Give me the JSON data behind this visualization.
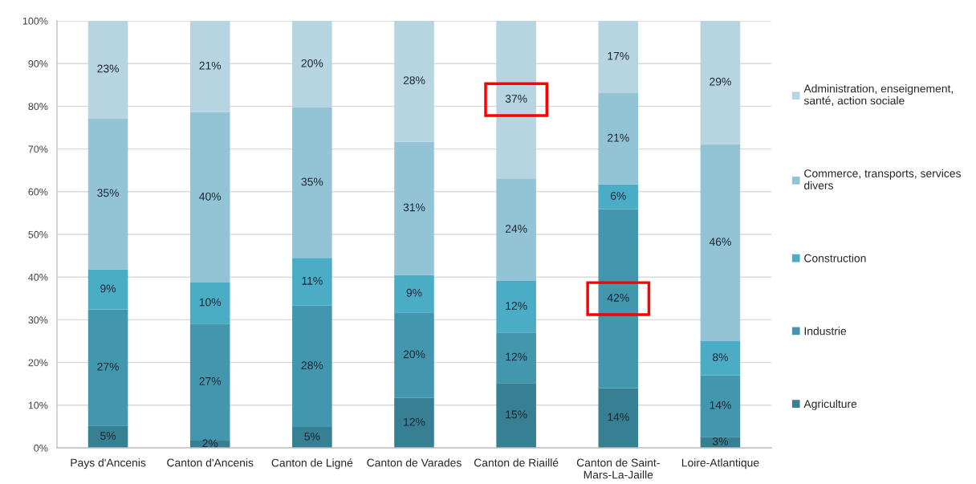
{
  "chart_data": {
    "type": "bar",
    "stacked": true,
    "categories": [
      "Pays d'Ancenis",
      "Canton d'Ancenis",
      "Canton de Ligné",
      "Canton de Varades",
      "Canton de Riaillé",
      "Canton de Saint-\nMars-La-Jaille",
      "Loire-Atlantique"
    ],
    "series": [
      {
        "name": "Agriculture",
        "color": "#377f92",
        "values": [
          5.2,
          1.7,
          4.9,
          11.7,
          15.2,
          14.0,
          2.6
        ],
        "value_labels": [
          "5%",
          "2%",
          "5%",
          "12%",
          "15%",
          "14%",
          "3%"
        ]
      },
      {
        "name": "Industrie",
        "color": "#4297af",
        "values": [
          27.2,
          27.4,
          28.4,
          20.0,
          11.8,
          41.9,
          14.4
        ],
        "value_labels": [
          "27%",
          "27%",
          "28%",
          "20%",
          "12%",
          "42%",
          "14%"
        ]
      },
      {
        "name": "Construction",
        "color": "#4bacc6",
        "values": [
          9.4,
          9.6,
          11.2,
          8.8,
          12.1,
          5.8,
          8.0
        ],
        "value_labels": [
          "9%",
          "10%",
          "11%",
          "9%",
          "12%",
          "6%",
          "8%"
        ]
      },
      {
        "name": "Commerce, transports, services\ndivers",
        "color": "#93c4d6",
        "values": [
          35.4,
          39.9,
          35.2,
          31.2,
          24.0,
          21.4,
          46.1
        ],
        "value_labels": [
          "35%",
          "40%",
          "35%",
          "31%",
          "24%",
          "21%",
          "46%"
        ]
      },
      {
        "name": "Administration, enseignement,\nsanté, action sociale",
        "color": "#b7d5e1",
        "values": [
          22.8,
          21.4,
          20.3,
          28.3,
          36.9,
          16.9,
          28.9
        ],
        "value_labels": [
          "23%",
          "21%",
          "20%",
          "28%",
          "37%",
          "17%",
          "29%"
        ]
      }
    ],
    "ylim": [
      0,
      100
    ],
    "yticks": [
      {
        "value": 0,
        "label": "0%"
      },
      {
        "value": 10,
        "label": "10%"
      },
      {
        "value": 20,
        "label": "20%"
      },
      {
        "value": 30,
        "label": "30%"
      },
      {
        "value": 40,
        "label": "40%"
      },
      {
        "value": 50,
        "label": "50%"
      },
      {
        "value": 60,
        "label": "60%"
      },
      {
        "value": 70,
        "label": "70%"
      },
      {
        "value": 80,
        "label": "80%"
      },
      {
        "value": 90,
        "label": "90%"
      },
      {
        "value": 100,
        "label": "100%"
      }
    ],
    "grid": "y",
    "legend": "right"
  }
}
